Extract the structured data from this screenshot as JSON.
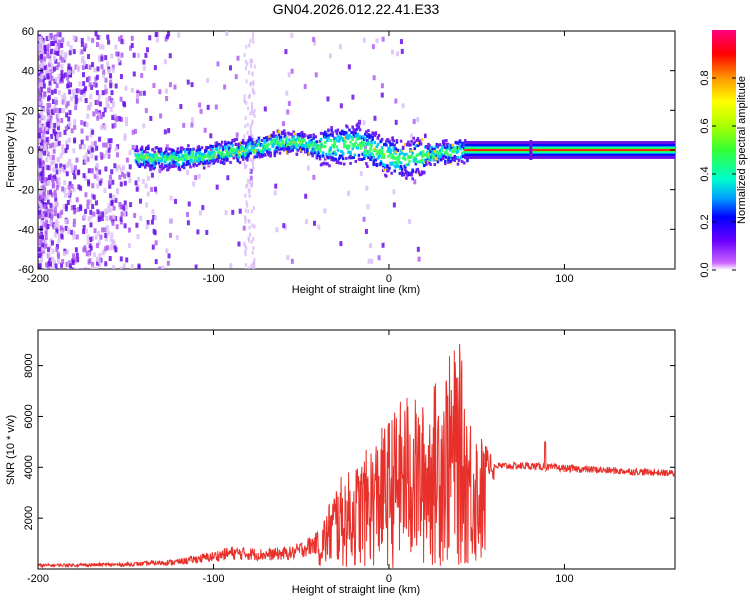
{
  "chart_data": [
    {
      "type": "heatmap",
      "title": "GN04.2026.012.22.41.E33",
      "xlabel": "Height of straight line (km)",
      "ylabel": "Frequency (Hz)",
      "xlim": [
        -200,
        163
      ],
      "ylim": [
        -60,
        60
      ],
      "x_ticks": [
        -200,
        -100,
        0,
        100
      ],
      "x_tick_labels": [
        "-200",
        "-100",
        "0",
        "100"
      ],
      "y_ticks": [
        -60,
        -40,
        -20,
        0,
        20,
        40,
        60
      ],
      "y_tick_labels": [
        "-60",
        "-40",
        "-20",
        "0",
        "20",
        "40",
        "60"
      ],
      "colorbar": {
        "label": "Normalized spectral amplitude",
        "range": [
          0,
          1
        ],
        "ticks": [
          0.0,
          0.2,
          0.4,
          0.6,
          0.8
        ],
        "tick_labels": [
          "0.0",
          "0.2",
          "0.4",
          "0.6",
          "0.8"
        ]
      },
      "ridge": {
        "description_points_x": [
          -145,
          -120,
          -100,
          -80,
          -70,
          -60,
          -50,
          -40,
          -30,
          -20,
          -10,
          0,
          10,
          20,
          30,
          40,
          45,
          80,
          163
        ],
        "description_points_y": [
          -3,
          -4,
          -1,
          1,
          3,
          5,
          4,
          2,
          3,
          4,
          1,
          -3,
          -4,
          -2,
          0,
          0,
          0,
          0,
          0
        ],
        "tone_line_amplitude": 1.0,
        "tone_line_start_x": 43
      }
    },
    {
      "type": "line",
      "xlabel": "Height of straight line (km)",
      "ylabel": "SNR (10 * v/v)",
      "xlim": [
        -200,
        163
      ],
      "ylim": [
        0,
        9400
      ],
      "x_ticks": [
        -200,
        -100,
        0,
        100
      ],
      "x_tick_labels": [
        "-200",
        "-100",
        "0",
        "100"
      ],
      "y_ticks": [
        2000,
        4000,
        6000,
        8000
      ],
      "y_tick_labels": [
        "2000",
        "4000",
        "6000",
        "8000"
      ],
      "series": [
        {
          "name": "SNR",
          "color": "#e8302a",
          "envelope_x": [
            -200,
            -150,
            -120,
            -100,
            -90,
            -70,
            -55,
            -40,
            -30,
            -20,
            -10,
            0,
            10,
            20,
            30,
            40,
            45,
            55,
            60,
            80,
            100,
            130,
            163
          ],
          "envelope_y": [
            200,
            250,
            400,
            700,
            900,
            800,
            900,
            1500,
            3500,
            4000,
            5000,
            6000,
            7000,
            6500,
            8000,
            9000,
            6500,
            5000,
            4200,
            4200,
            4100,
            4000,
            3900
          ]
        }
      ]
    }
  ]
}
